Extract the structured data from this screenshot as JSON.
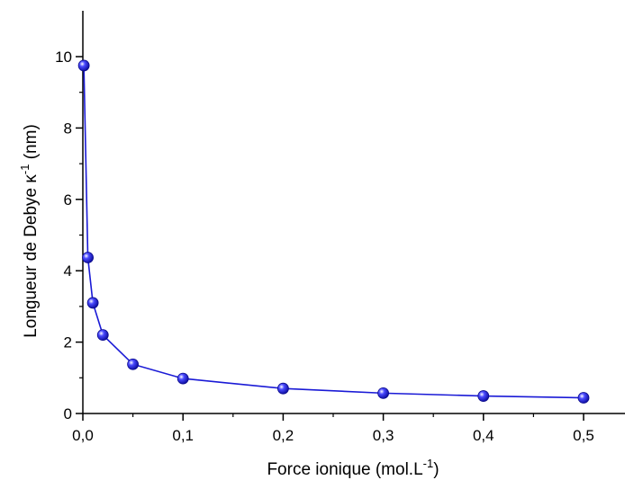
{
  "chart_data": {
    "type": "line",
    "title": "",
    "xlabel": "Force ionique (mol.L",
    "xlabel_sup": "-1",
    "xlabel_end": ")",
    "ylabel": "Longueur de Debye κ",
    "ylabel_sup": "-1",
    "ylabel_end": " (nm)",
    "xlim": [
      0,
      0.52
    ],
    "ylim": [
      0,
      11
    ],
    "xticks": [
      0,
      0.1,
      0.2,
      0.3,
      0.4,
      0.5
    ],
    "xtick_labels": [
      "0,0",
      "0,1",
      "0,2",
      "0,3",
      "0,4",
      "0,5"
    ],
    "yticks": [
      0,
      2,
      4,
      6,
      8,
      10
    ],
    "ytick_labels": [
      "0",
      "2",
      "4",
      "6",
      "8",
      "10"
    ],
    "grid": false,
    "series": [
      {
        "x": [
          0.001,
          0.005,
          0.01,
          0.02,
          0.05,
          0.1,
          0.2,
          0.3,
          0.4,
          0.5
        ],
        "y": [
          9.75,
          4.37,
          3.1,
          2.2,
          1.38,
          0.98,
          0.7,
          0.57,
          0.49,
          0.44
        ],
        "color": "#1a1ad6"
      }
    ]
  }
}
